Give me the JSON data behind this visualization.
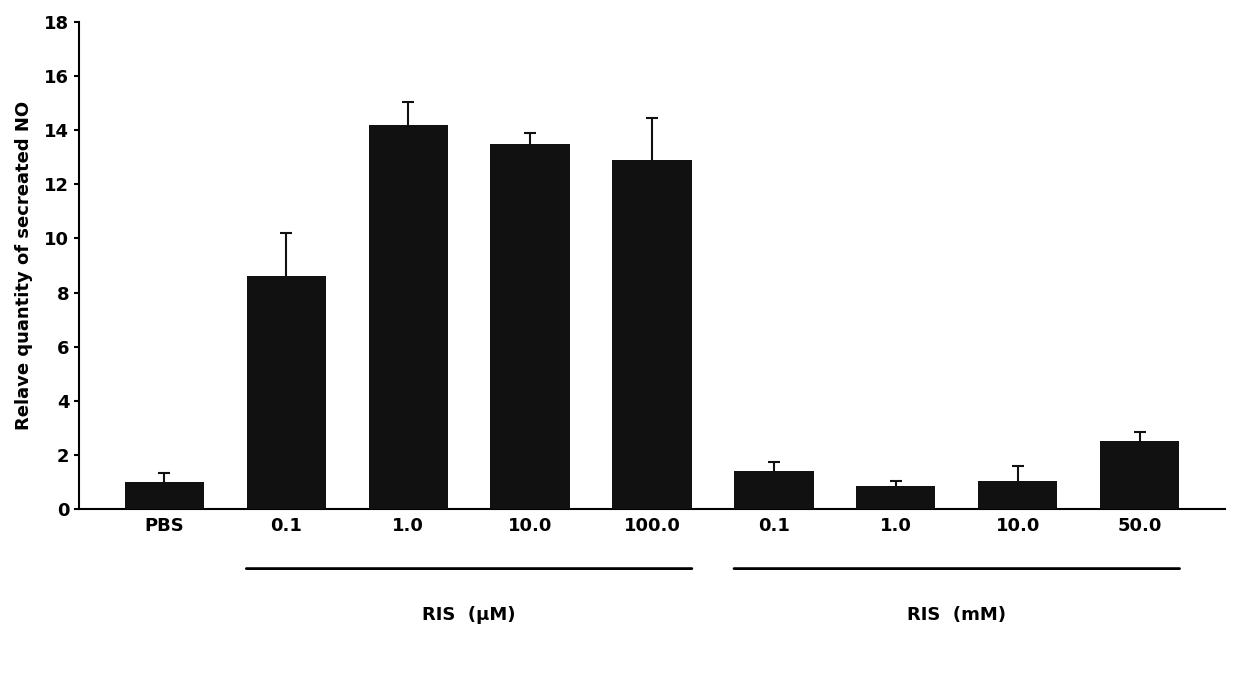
{
  "categories": [
    "PBS",
    "0.1",
    "1.0",
    "10.0",
    "100.0",
    "0.1",
    "1.0",
    "10.0",
    "50.0"
  ],
  "values": [
    1.0,
    8.6,
    14.2,
    13.5,
    12.9,
    1.4,
    0.85,
    1.05,
    2.5
  ],
  "errors": [
    0.35,
    1.6,
    0.85,
    0.4,
    1.55,
    0.35,
    0.2,
    0.55,
    0.35
  ],
  "bar_color": "#111111",
  "background_color": "#ffffff",
  "ylabel": "Relave quantity of secreated NO",
  "ylim": [
    0,
    18
  ],
  "yticks": [
    0,
    2,
    4,
    6,
    8,
    10,
    12,
    14,
    16,
    18
  ],
  "group1_label": "RIS  (μM)",
  "group2_label": "RIS  (mM)",
  "bar_width": 0.65,
  "figsize": [
    12.4,
    6.81
  ],
  "dpi": 100
}
